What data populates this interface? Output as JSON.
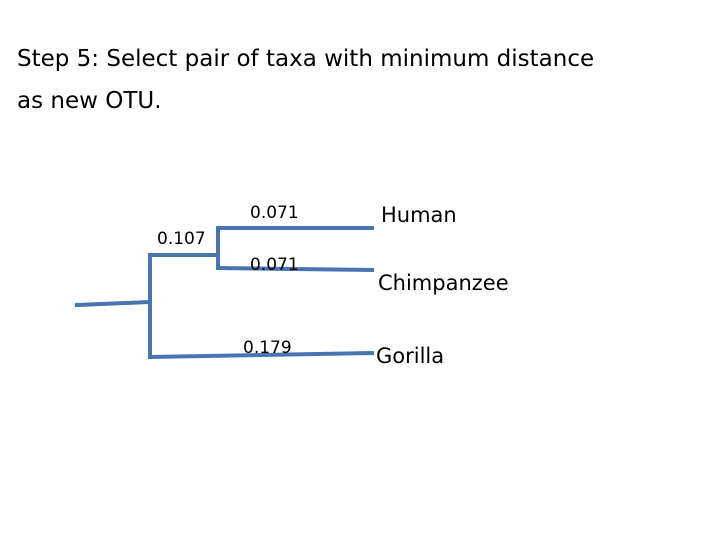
{
  "header": {
    "title_lines": [
      "Step 5: Select pair of taxa with minimum distance",
      "as new OTU."
    ]
  },
  "tree": {
    "internal_branch": {
      "length": "0.107"
    },
    "leaves": [
      {
        "name": "Human",
        "length": "0.071"
      },
      {
        "name": "Chimpanzee",
        "length": "0.071"
      },
      {
        "name": "Gorilla",
        "length": "0.179"
      }
    ]
  }
}
